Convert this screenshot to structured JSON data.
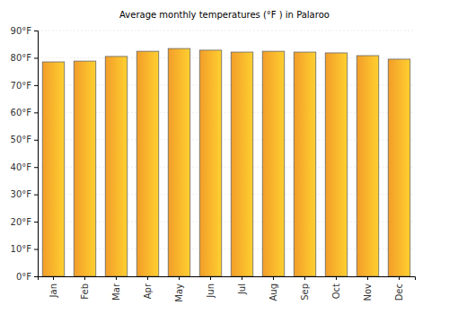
{
  "chart_data": {
    "type": "bar",
    "title": "Average monthly temperatures (°F ) in Palaroo",
    "categories": [
      "Jan",
      "Feb",
      "Mar",
      "Apr",
      "May",
      "Jun",
      "Jul",
      "Aug",
      "Sep",
      "Oct",
      "Nov",
      "Dec"
    ],
    "values": [
      78.5,
      78.8,
      80.5,
      82.4,
      83.4,
      82.8,
      82.1,
      82.4,
      82.1,
      81.8,
      80.8,
      79.5
    ],
    "color": "#ffa62b",
    "ylim": [
      0,
      90
    ],
    "yticks": [
      {
        "value": 0,
        "label": "0°F"
      },
      {
        "value": 10,
        "label": "10°F"
      },
      {
        "value": 20,
        "label": "20°F"
      },
      {
        "value": 30,
        "label": "30°F"
      },
      {
        "value": 40,
        "label": "40°F"
      },
      {
        "value": 50,
        "label": "50°F"
      },
      {
        "value": 60,
        "label": "60°F"
      },
      {
        "value": 70,
        "label": "70°F"
      },
      {
        "value": 80,
        "label": "80°F"
      },
      {
        "value": 90,
        "label": "90°F"
      }
    ],
    "grid": true
  }
}
